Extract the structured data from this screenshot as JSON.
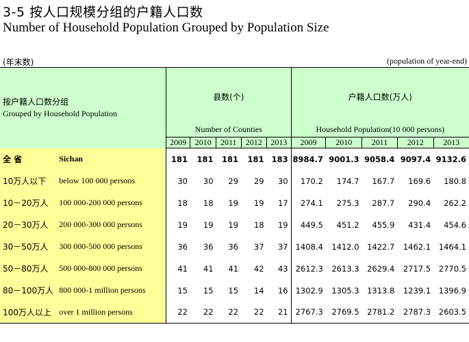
{
  "title_cn": "3-5  按人口规模分组的户籍人口数",
  "title_en": "Number of Household Population Grouped by Population Size",
  "unit_left": "(年末数)",
  "unit_right": "(population of year-end)",
  "header": {
    "left_cn": "按户籍人口数分组",
    "left_en": "Grouped by Household Population",
    "counties_cn": "县数(个)",
    "counties_en": "Number of Counties",
    "pop_cn": "户籍人口数(万人)",
    "pop_en": "Household Population(10 000 persons)",
    "years_counties": [
      "2009",
      "2010",
      "2011",
      "2012",
      "2013"
    ],
    "years_pop": [
      "2009",
      "2010",
      "2011",
      "2012",
      "2013"
    ]
  },
  "rows": [
    {
      "cn": "全    省",
      "en": "Sichan",
      "counties": [
        "181",
        "181",
        "181",
        "181",
        "183"
      ],
      "pop": [
        "8984.7",
        "9001.3",
        "9058.4",
        "9097.4",
        "9132.6"
      ]
    },
    {
      "cn": "10万人以下",
      "en": "below 100 000 persons",
      "counties": [
        "30",
        "30",
        "29",
        "29",
        "30"
      ],
      "pop": [
        "170.2",
        "174.7",
        "167.7",
        "169.6",
        "180.8"
      ]
    },
    {
      "cn": "10－20万人",
      "en": "100 000-200 000 persons",
      "counties": [
        "18",
        "18",
        "19",
        "19",
        "17"
      ],
      "pop": [
        "274.1",
        "275.3",
        "287.7",
        "290.4",
        "262.2"
      ]
    },
    {
      "cn": "20－30万人",
      "en": "200 000-300 000 persons",
      "counties": [
        "19",
        "19",
        "19",
        "18",
        "19"
      ],
      "pop": [
        "449.5",
        "451.2",
        "455.9",
        "431.4",
        "454.6"
      ]
    },
    {
      "cn": "30－50万人",
      "en": "300 000-500 000 persons",
      "counties": [
        "36",
        "36",
        "36",
        "37",
        "37"
      ],
      "pop": [
        "1408.4",
        "1412.0",
        "1422.7",
        "1462.1",
        "1464.1"
      ]
    },
    {
      "cn": "50－80万人",
      "en": "500 000-800 000 persons",
      "counties": [
        "41",
        "41",
        "41",
        "42",
        "43"
      ],
      "pop": [
        "2612.3",
        "2613.3",
        "2629.4",
        "2717.5",
        "2770.5"
      ]
    },
    {
      "cn": "80－100万人",
      "en": "800 000-1 million persons",
      "counties": [
        "15",
        "15",
        "15",
        "14",
        "16"
      ],
      "pop": [
        "1302.9",
        "1305.3",
        "1313.8",
        "1239.1",
        "1396.9"
      ]
    },
    {
      "cn": "100万人以上",
      "en": "over 1 million persons",
      "counties": [
        "22",
        "22",
        "22",
        "22",
        "21"
      ],
      "pop": [
        "2767.3",
        "2769.5",
        "2781.2",
        "2787.3",
        "2603.5"
      ]
    }
  ]
}
